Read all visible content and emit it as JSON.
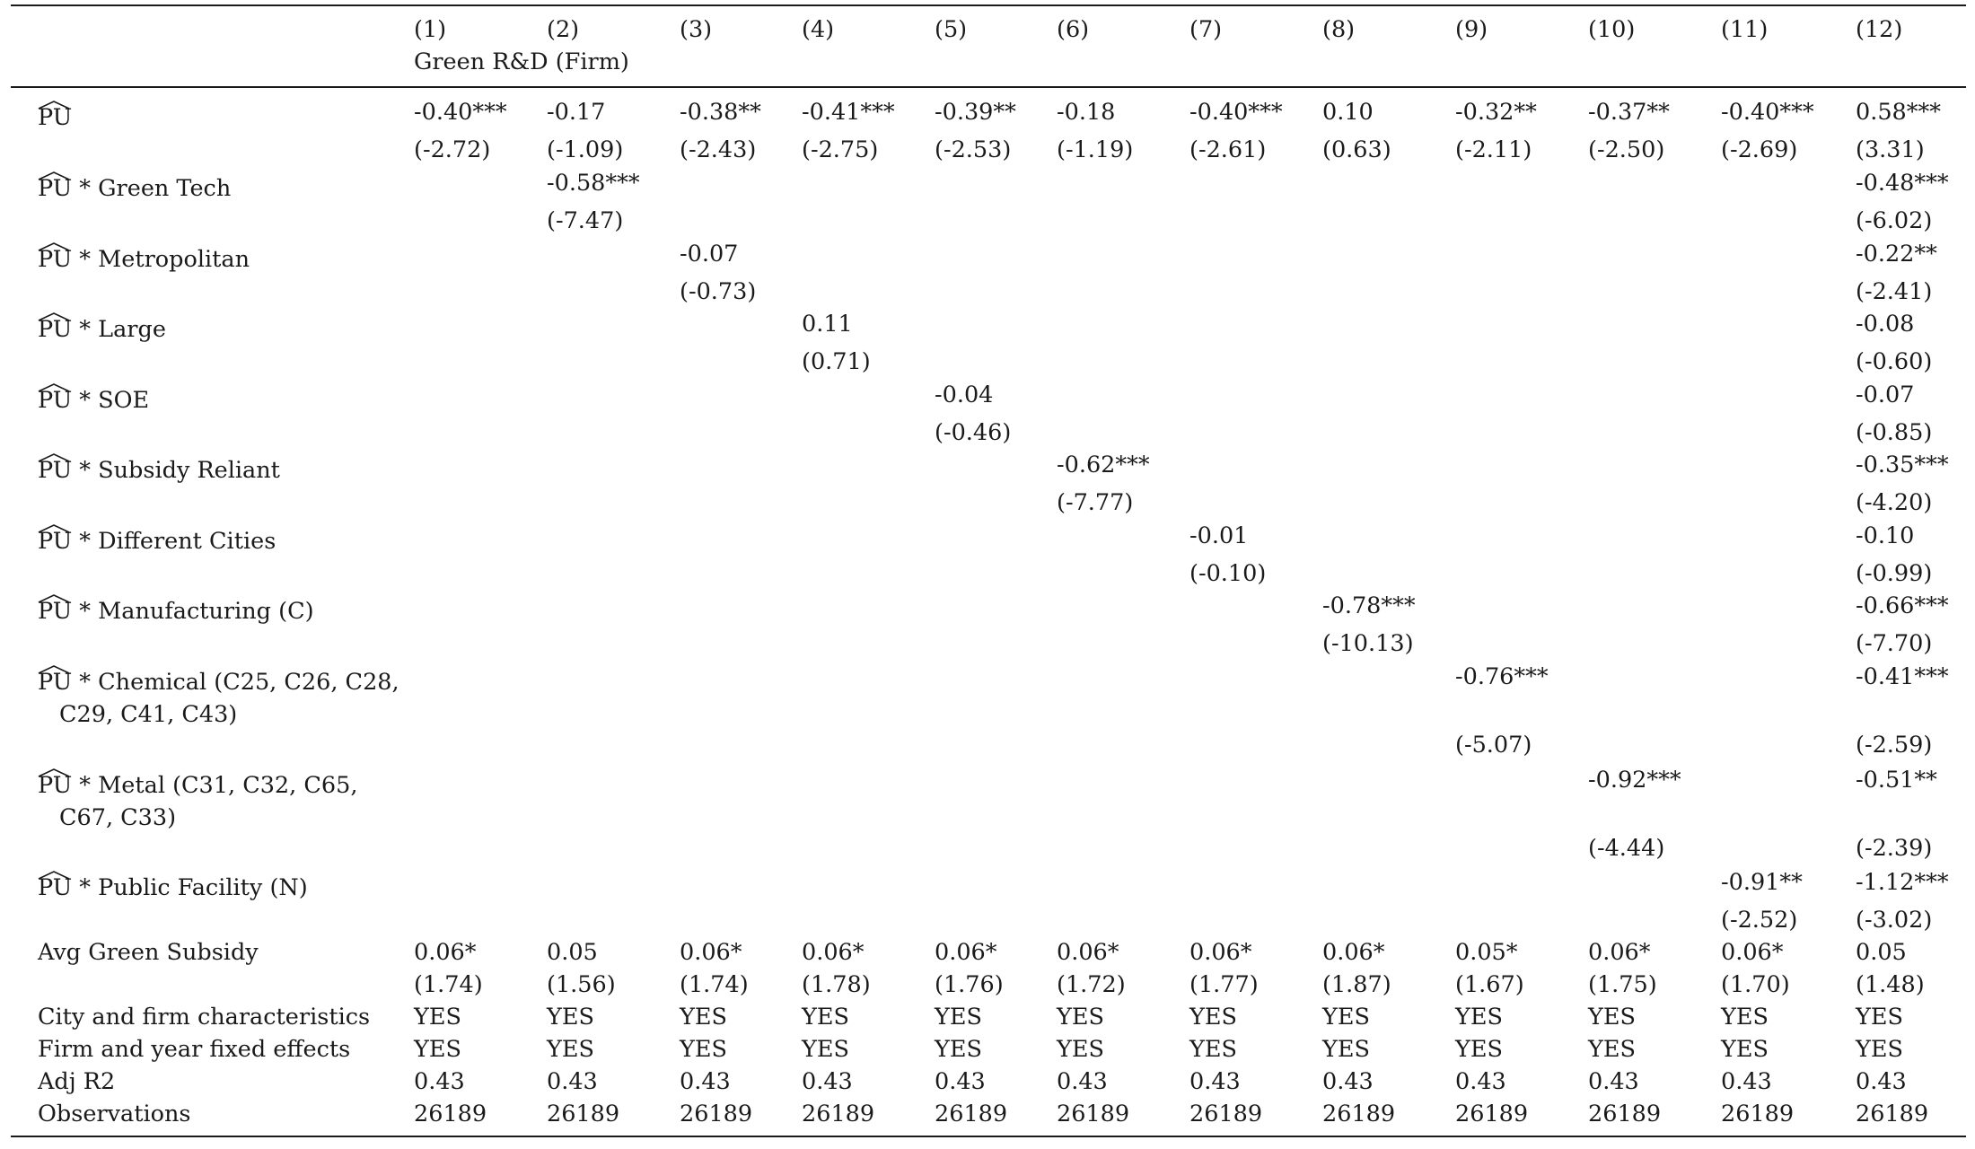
{
  "header": {
    "columns": [
      "(1)",
      "(2)",
      "(3)",
      "(4)",
      "(5)",
      "(6)",
      "(7)",
      "(8)",
      "(9)",
      "(10)",
      "(11)",
      "(12)"
    ],
    "dependent_variable": "Green R&D (Firm)"
  },
  "rows": [
    {
      "var": "PU",
      "label": "",
      "label2": "",
      "coefs": [
        "-0.40***",
        "-0.17",
        "-0.38**",
        "-0.41***",
        "-0.39**",
        "-0.18",
        "-0.40***",
        "0.10",
        "-0.32**",
        "-0.37**",
        "-0.40***",
        "0.58***"
      ],
      "tstats": [
        "(-2.72)",
        "(-1.09)",
        "(-2.43)",
        "(-2.75)",
        "(-2.53)",
        "(-1.19)",
        "(-2.61)",
        "(0.63)",
        "(-2.11)",
        "(-2.50)",
        "(-2.69)",
        "(3.31)"
      ]
    },
    {
      "var": "PU",
      "label": " * Green Tech",
      "label2": "",
      "coefs": [
        "",
        "-0.58***",
        "",
        "",
        "",
        "",
        "",
        "",
        "",
        "",
        "",
        "-0.48***"
      ],
      "tstats": [
        "",
        "(-7.47)",
        "",
        "",
        "",
        "",
        "",
        "",
        "",
        "",
        "",
        "(-6.02)"
      ]
    },
    {
      "var": "PU",
      "label": " * Metropolitan",
      "label2": "",
      "coefs": [
        "",
        "",
        "-0.07",
        "",
        "",
        "",
        "",
        "",
        "",
        "",
        "",
        "-0.22**"
      ],
      "tstats": [
        "",
        "",
        "(-0.73)",
        "",
        "",
        "",
        "",
        "",
        "",
        "",
        "",
        "(-2.41)"
      ]
    },
    {
      "var": "PU",
      "label": " * Large",
      "label2": "",
      "coefs": [
        "",
        "",
        "",
        "0.11",
        "",
        "",
        "",
        "",
        "",
        "",
        "",
        "-0.08"
      ],
      "tstats": [
        "",
        "",
        "",
        "(0.71)",
        "",
        "",
        "",
        "",
        "",
        "",
        "",
        "(-0.60)"
      ]
    },
    {
      "var": "PU",
      "label": " * SOE",
      "label2": "",
      "coefs": [
        "",
        "",
        "",
        "",
        "-0.04",
        "",
        "",
        "",
        "",
        "",
        "",
        "-0.07"
      ],
      "tstats": [
        "",
        "",
        "",
        "",
        "(-0.46)",
        "",
        "",
        "",
        "",
        "",
        "",
        "(-0.85)"
      ]
    },
    {
      "var": "PU",
      "label": " * Subsidy Reliant",
      "label2": "",
      "coefs": [
        "",
        "",
        "",
        "",
        "",
        "-0.62***",
        "",
        "",
        "",
        "",
        "",
        "-0.35***"
      ],
      "tstats": [
        "",
        "",
        "",
        "",
        "",
        "(-7.77)",
        "",
        "",
        "",
        "",
        "",
        "(-4.20)"
      ]
    },
    {
      "var": "PU",
      "label": " * Different Cities",
      "label2": "",
      "coefs": [
        "",
        "",
        "",
        "",
        "",
        "",
        "-0.01",
        "",
        "",
        "",
        "",
        "-0.10"
      ],
      "tstats": [
        "",
        "",
        "",
        "",
        "",
        "",
        "(-0.10)",
        "",
        "",
        "",
        "",
        "(-0.99)"
      ]
    },
    {
      "var": "PU",
      "label": " * Manufacturing (C)",
      "label2": "",
      "coefs": [
        "",
        "",
        "",
        "",
        "",
        "",
        "",
        "-0.78***",
        "",
        "",
        "",
        "-0.66***"
      ],
      "tstats": [
        "",
        "",
        "",
        "",
        "",
        "",
        "",
        "(-10.13)",
        "",
        "",
        "",
        "(-7.70)"
      ]
    },
    {
      "var": "PU",
      "label": " * Chemical (C25, C26, C28,",
      "label2": "C29, C41, C43)",
      "coefs": [
        "",
        "",
        "",
        "",
        "",
        "",
        "",
        "",
        "-0.76***",
        "",
        "",
        "-0.41***"
      ],
      "tstats": [
        "",
        "",
        "",
        "",
        "",
        "",
        "",
        "",
        "(-5.07)",
        "",
        "",
        "(-2.59)"
      ]
    },
    {
      "var": "PU",
      "label": " * Metal (C31, C32, C65,",
      "label2": "C67, C33)",
      "coefs": [
        "",
        "",
        "",
        "",
        "",
        "",
        "",
        "",
        "",
        "-0.92***",
        "",
        "-0.51**"
      ],
      "tstats": [
        "",
        "",
        "",
        "",
        "",
        "",
        "",
        "",
        "",
        "(-4.44)",
        "",
        "(-2.39)"
      ]
    },
    {
      "var": "PU",
      "label": " * Public Facility (N)",
      "label2": "",
      "coefs": [
        "",
        "",
        "",
        "",
        "",
        "",
        "",
        "",
        "",
        "",
        "-0.91**",
        "-1.12***"
      ],
      "tstats": [
        "",
        "",
        "",
        "",
        "",
        "",
        "",
        "",
        "",
        "",
        "(-2.52)",
        "(-3.02)"
      ]
    }
  ],
  "subsidy": {
    "label": "Avg Green Subsidy",
    "coefs": [
      "0.06*",
      "0.05",
      "0.06*",
      "0.06*",
      "0.06*",
      "0.06*",
      "0.06*",
      "0.06*",
      "0.05*",
      "0.06*",
      "0.06*",
      "0.05"
    ],
    "tstats": [
      "(1.74)",
      "(1.56)",
      "(1.74)",
      "(1.78)",
      "(1.76)",
      "(1.72)",
      "(1.77)",
      "(1.87)",
      "(1.67)",
      "(1.75)",
      "(1.70)",
      "(1.48)"
    ]
  },
  "footer": [
    {
      "label": "City and firm characteristics",
      "values": [
        "YES",
        "YES",
        "YES",
        "YES",
        "YES",
        "YES",
        "YES",
        "YES",
        "YES",
        "YES",
        "YES",
        "YES"
      ]
    },
    {
      "label": "Firm and year fixed effects",
      "values": [
        "YES",
        "YES",
        "YES",
        "YES",
        "YES",
        "YES",
        "YES",
        "YES",
        "YES",
        "YES",
        "YES",
        "YES"
      ]
    },
    {
      "label": "Adj R2",
      "values": [
        "0.43",
        "0.43",
        "0.43",
        "0.43",
        "0.43",
        "0.43",
        "0.43",
        "0.43",
        "0.43",
        "0.43",
        "0.43",
        "0.43"
      ]
    },
    {
      "label": "Observations",
      "values": [
        "26189",
        "26189",
        "26189",
        "26189",
        "26189",
        "26189",
        "26189",
        "26189",
        "26189",
        "26189",
        "26189",
        "26189"
      ]
    }
  ]
}
